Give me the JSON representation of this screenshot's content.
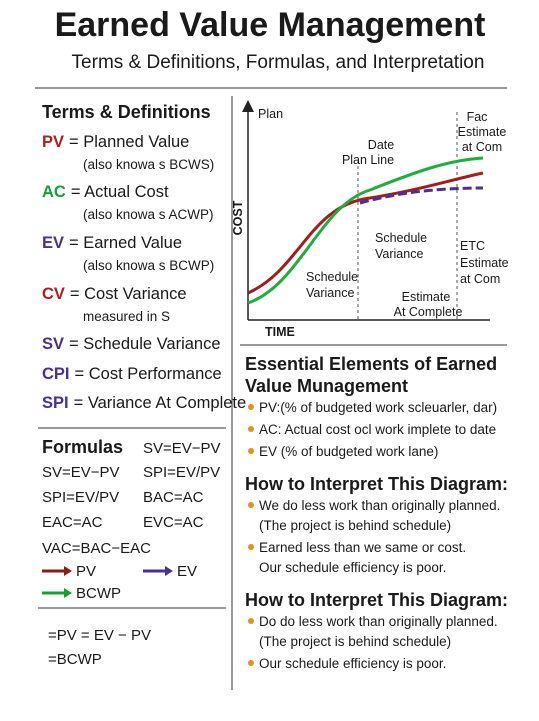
{
  "header": {
    "title": "Earned Value Management",
    "subtitle": "Terms & Definitions, Formulas, and Interpretation"
  },
  "terms": {
    "heading": "Terms & Definitions",
    "items": [
      {
        "abbr": "PV",
        "text": "= Planned Value",
        "note": "(also knowa s BCWS)"
      },
      {
        "abbr": "AC",
        "text": "= Actual Cost",
        "note": "(also knowa s ACWP)"
      },
      {
        "abbr": "EV",
        "text": "= Earned Value",
        "note": "(also knowa s BCWP)"
      },
      {
        "abbr": "CV",
        "text": "= Cost Variance",
        "note": "measured in S"
      },
      {
        "abbr": "SV",
        "text": "= Schedule Variance"
      },
      {
        "abbr": "CPI",
        "text": "= Cost Performance"
      },
      {
        "abbr": "SPI",
        "text": "= Variance At Complete"
      }
    ]
  },
  "formulas": {
    "heading": "Formulas",
    "items": [
      "SV=EV−PV",
      "SV=EV−PV",
      "SPI=EV/PV",
      "SPI=EV/PV",
      "BAC=AC",
      "EAC=AC",
      "EVC=AC",
      "VAC=BAC−EAC"
    ],
    "legend": [
      "PV",
      "EV",
      "BCWP"
    ]
  },
  "bottom": [
    "=PV = EV − PV",
    "=BCWP"
  ],
  "diagram": {
    "y_axis": "Plan",
    "cost": "COST",
    "x_axis": "TIME",
    "date_line": [
      "Date",
      "Plan Line"
    ],
    "fac": [
      "Fac",
      "Estimate",
      "at Com"
    ],
    "schedule_variance_top": [
      "Schedule",
      "Variance"
    ],
    "etc": [
      "ETC",
      "Estimate",
      "at Com"
    ],
    "schedule_variance_bottom": [
      "Schedule",
      "Variance"
    ],
    "eac": [
      "Estimate",
      "At Complete"
    ]
  },
  "sections": [
    {
      "heading": [
        "Essential Elements of Earned",
        "Value Munagement"
      ],
      "bullets": [
        [
          "PV:(% of budgeted work scleuarler, dar)"
        ],
        [
          "AC: Actual cost ocl work implete to date"
        ],
        [
          "EV (% of budgeted work lane)"
        ]
      ]
    },
    {
      "heading": [
        "How to Interpret This Diagram:"
      ],
      "bullets": [
        [
          "We do less work than originally planned.",
          "(The project is behind schedule)"
        ],
        [
          "Earned less than we same or cost.",
          "Our schedule efficiency is poor."
        ]
      ]
    },
    {
      "heading": [
        "How to Interpret This Diagram:"
      ],
      "bullets": [
        [
          "Do do less work than originally planned.",
          "(The project is behind schedule)"
        ],
        [
          "Our schedule efficiency is poor."
        ]
      ]
    }
  ]
}
